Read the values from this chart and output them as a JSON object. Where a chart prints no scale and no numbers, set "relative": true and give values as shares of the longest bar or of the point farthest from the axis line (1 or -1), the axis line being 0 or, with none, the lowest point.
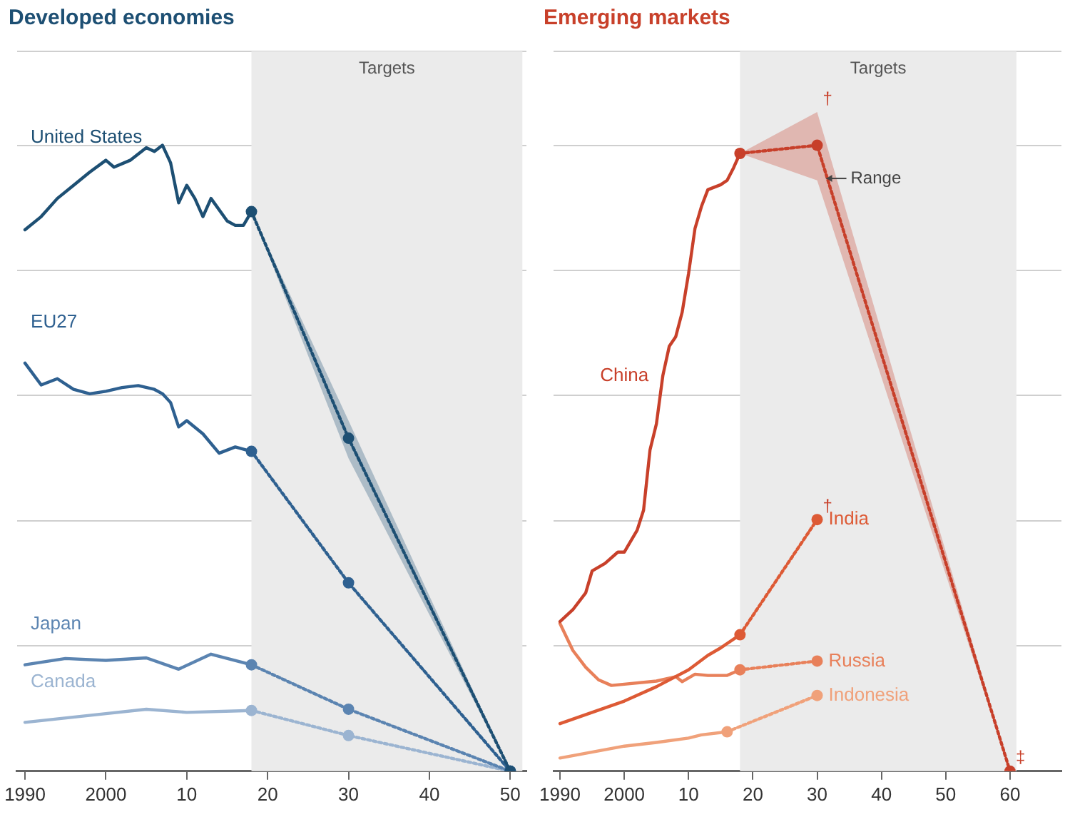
{
  "chart_data": [
    {
      "type": "line",
      "title": "Developed economies",
      "relative": true,
      "xlim": [
        1989,
        2052
      ],
      "xticks": [
        {
          "value": 1990,
          "label": "1990"
        },
        {
          "value": 2000,
          "label": "2000"
        },
        {
          "value": 2010,
          "label": "10"
        },
        {
          "value": 2020,
          "label": "20"
        },
        {
          "value": 2030,
          "label": "30"
        },
        {
          "value": 2040,
          "label": "40"
        },
        {
          "value": 2050,
          "label": "50"
        }
      ],
      "grid": "y",
      "legend": false,
      "tick_labels": "x",
      "bands": [
        {
          "axis": "x",
          "from": 2018,
          "to": 2051.5,
          "label": "Targets",
          "color": "#ebebeb"
        }
      ],
      "series": [
        {
          "name": "United States",
          "color": "#1d4f73",
          "line_style": "solid",
          "marker": "none",
          "x": [
            1990,
            1992,
            1994,
            1996,
            1998,
            2000,
            2001,
            2003,
            2005,
            2006,
            2007,
            2008,
            2009,
            2010,
            2011,
            2012,
            2013,
            2015,
            2016,
            2017,
            2018
          ],
          "values": [
            0.865,
            0.886,
            0.915,
            0.936,
            0.957,
            0.976,
            0.965,
            0.976,
            0.996,
            0.99,
            1,
            0.972,
            0.908,
            0.936,
            0.915,
            0.886,
            0.915,
            0.879,
            0.872,
            0.872,
            0.894
          ]
        },
        {
          "color": "#1d4f73",
          "line_style": "dotted",
          "marker": "circle",
          "x": [
            2018,
            2030,
            2050
          ],
          "values": [
            0.894,
            0.532,
            0
          ],
          "lower": [
            0.894,
            0.5,
            0
          ],
          "upper": [
            0.894,
            0.56,
            0
          ]
        },
        {
          "name": "EU27",
          "color": "#2e6090",
          "line_style": "solid",
          "marker": "none",
          "x": [
            1990,
            1992,
            1994,
            1996,
            1998,
            2000,
            2002,
            2004,
            2006,
            2007,
            2008,
            2009,
            2010,
            2012,
            2014,
            2016,
            2018
          ],
          "values": [
            0.652,
            0.617,
            0.627,
            0.61,
            0.603,
            0.607,
            0.613,
            0.616,
            0.61,
            0.603,
            0.589,
            0.55,
            0.56,
            0.539,
            0.508,
            0.518,
            0.511
          ]
        },
        {
          "color": "#2e6090",
          "line_style": "dotted",
          "marker": "circle",
          "x": [
            2018,
            2030,
            2050
          ],
          "values": [
            0.511,
            0.301,
            0
          ]
        },
        {
          "name": "Japan",
          "color": "#5b84b1",
          "line_style": "solid",
          "marker": "none",
          "x": [
            1990,
            1995,
            2000,
            2005,
            2009,
            2013,
            2018
          ],
          "values": [
            0.17,
            0.18,
            0.177,
            0.181,
            0.163,
            0.187,
            0.17
          ]
        },
        {
          "color": "#5b84b1",
          "line_style": "dotted",
          "marker": "circle",
          "x": [
            2018,
            2030,
            2050
          ],
          "values": [
            0.17,
            0.099,
            0
          ]
        },
        {
          "name": "Canada",
          "color": "#9bb4d1",
          "line_style": "solid",
          "marker": "none",
          "x": [
            1990,
            2000,
            2005,
            2010,
            2018
          ],
          "values": [
            0.078,
            0.092,
            0.099,
            0.094,
            0.097
          ]
        },
        {
          "color": "#9bb4d1",
          "line_style": "dotted",
          "marker": "circle",
          "x": [
            2018,
            2030,
            2050
          ],
          "values": [
            0.097,
            0.057,
            0
          ]
        }
      ]
    },
    {
      "type": "line",
      "title": "Emerging markets",
      "relative": true,
      "xlim": [
        1989,
        2068
      ],
      "xticks": [
        {
          "value": 1990,
          "label": "1990"
        },
        {
          "value": 2000,
          "label": "2000"
        },
        {
          "value": 2010,
          "label": "10"
        },
        {
          "value": 2020,
          "label": "20"
        },
        {
          "value": 2030,
          "label": "30"
        },
        {
          "value": 2040,
          "label": "40"
        },
        {
          "value": 2050,
          "label": "50"
        },
        {
          "value": 2060,
          "label": "60"
        }
      ],
      "grid": "y",
      "legend": false,
      "tick_labels": "x",
      "bands": [
        {
          "axis": "x",
          "from": 2018,
          "to": 2061,
          "label": "Targets",
          "color": "#ebebeb"
        }
      ],
      "annotations": [
        {
          "text": "Range",
          "x": 2031,
          "y": 0.947
        },
        {
          "text": "†",
          "x": 2030,
          "y": 1.053
        },
        {
          "text": "†",
          "x": 2030,
          "y": 0.402
        },
        {
          "text": "‡",
          "x": 2060,
          "y": 0
        }
      ],
      "series": [
        {
          "name": "China",
          "color": "#c8402a",
          "line_style": "solid",
          "marker": "none",
          "x": [
            1990,
            1992,
            1994,
            1995,
            1997,
            1999,
            2000,
            2002,
            2003,
            2004,
            2005,
            2006,
            2007,
            2008,
            2009,
            2010,
            2011,
            2012,
            2013,
            2015,
            2016,
            2017,
            2018
          ],
          "values": [
            0.239,
            0.258,
            0.285,
            0.32,
            0.332,
            0.35,
            0.35,
            0.385,
            0.417,
            0.513,
            0.555,
            0.632,
            0.679,
            0.694,
            0.733,
            0.795,
            0.867,
            0.902,
            0.929,
            0.937,
            0.944,
            0.964,
            0.987
          ]
        },
        {
          "color": "#c8402a",
          "line_style": "dotted",
          "marker": "circle",
          "x": [
            2018,
            2030,
            2060
          ],
          "values": [
            0.987,
            1,
            0
          ],
          "lower": [
            0.987,
            0.944,
            0
          ],
          "upper": [
            0.987,
            1.053,
            0
          ]
        },
        {
          "name": "India",
          "color": "#dd5a35",
          "line_style": "solid",
          "marker": "none",
          "x": [
            1990,
            2000,
            2005,
            2010,
            2013,
            2015,
            2018
          ],
          "values": [
            0.076,
            0.112,
            0.135,
            0.162,
            0.185,
            0.197,
            0.218
          ]
        },
        {
          "color": "#dd5a35",
          "line_style": "dotted",
          "marker": "circle",
          "x": [
            2018,
            2030
          ],
          "values": [
            0.218,
            0.402
          ]
        },
        {
          "name": "Russia",
          "color": "#e8805a",
          "line_style": "solid",
          "marker": "none",
          "x": [
            1990,
            1992,
            1994,
            1996,
            1998,
            2000,
            2005,
            2008,
            2009,
            2011,
            2013,
            2016,
            2018
          ],
          "values": [
            0.236,
            0.193,
            0.166,
            0.146,
            0.137,
            0.139,
            0.144,
            0.151,
            0.143,
            0.155,
            0.153,
            0.153,
            0.162
          ]
        },
        {
          "color": "#e8805a",
          "line_style": "dotted",
          "marker": "circle",
          "x": [
            2018,
            2030
          ],
          "values": [
            0.162,
            0.176
          ]
        },
        {
          "name": "Indonesia",
          "color": "#f0a17a",
          "line_style": "solid",
          "marker": "none",
          "x": [
            1990,
            2000,
            2005,
            2010,
            2012,
            2016
          ],
          "values": [
            0.021,
            0.04,
            0.046,
            0.053,
            0.058,
            0.063
          ]
        },
        {
          "color": "#f0a17a",
          "line_style": "dotted",
          "marker": "circle",
          "x": [
            2016,
            2030
          ],
          "values": [
            0.063,
            0.121
          ]
        }
      ]
    }
  ]
}
